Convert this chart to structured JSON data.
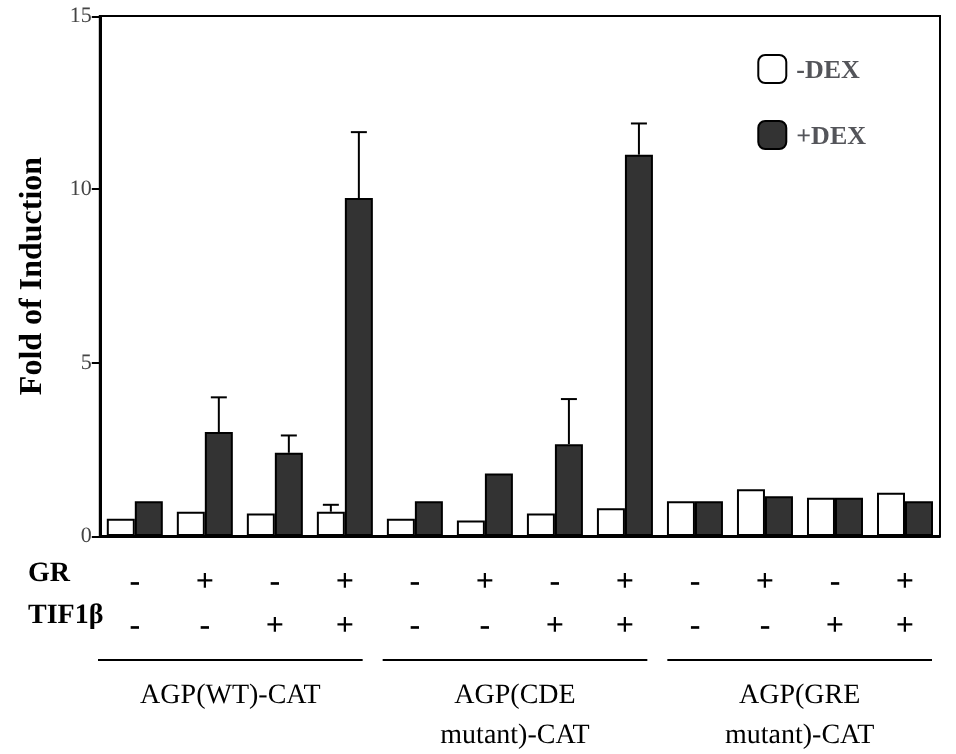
{
  "chart_data": {
    "type": "bar",
    "ylabel": "Fold of Induction",
    "categories": [
      "-\n-",
      "+\n-",
      "-\n+",
      "+\n+",
      "-\n-",
      "+\n-",
      "-\n+",
      "+\n+",
      "-\n-",
      "+\n-",
      "-\n+",
      "+\n+"
    ],
    "series": [
      {
        "name": "-DEX",
        "color": "#ffffff",
        "values": [
          0.5,
          0.7,
          0.65,
          0.7,
          0.5,
          0.45,
          0.65,
          0.8,
          1.0,
          1.35,
          1.1,
          1.25
        ],
        "errors": [
          null,
          null,
          null,
          [
            0.7,
            0.9
          ],
          null,
          null,
          null,
          null,
          null,
          null,
          null,
          null
        ]
      },
      {
        "name": "+DEX",
        "color": "#333333",
        "values": [
          1.0,
          3.0,
          2.4,
          9.75,
          1.0,
          1.8,
          2.65,
          11.0,
          1.0,
          1.15,
          1.1,
          1.0
        ],
        "errors": [
          null,
          [
            3.0,
            4.0
          ],
          [
            2.4,
            2.9
          ],
          [
            9.75,
            11.65
          ],
          null,
          null,
          [
            2.65,
            3.95
          ],
          [
            11.0,
            11.9
          ],
          null,
          null,
          null,
          null
        ]
      }
    ],
    "ylim": [
      0,
      15
    ],
    "yticks": [
      0,
      5,
      10,
      15
    ],
    "grid": false,
    "legend": "top right",
    "annotations": [
      "GR",
      "TIF1β",
      "AGP(WT)-CAT",
      "AGP(CDE\nmutant)-CAT",
      "AGP(GRE\nmutant)-CAT"
    ]
  }
}
